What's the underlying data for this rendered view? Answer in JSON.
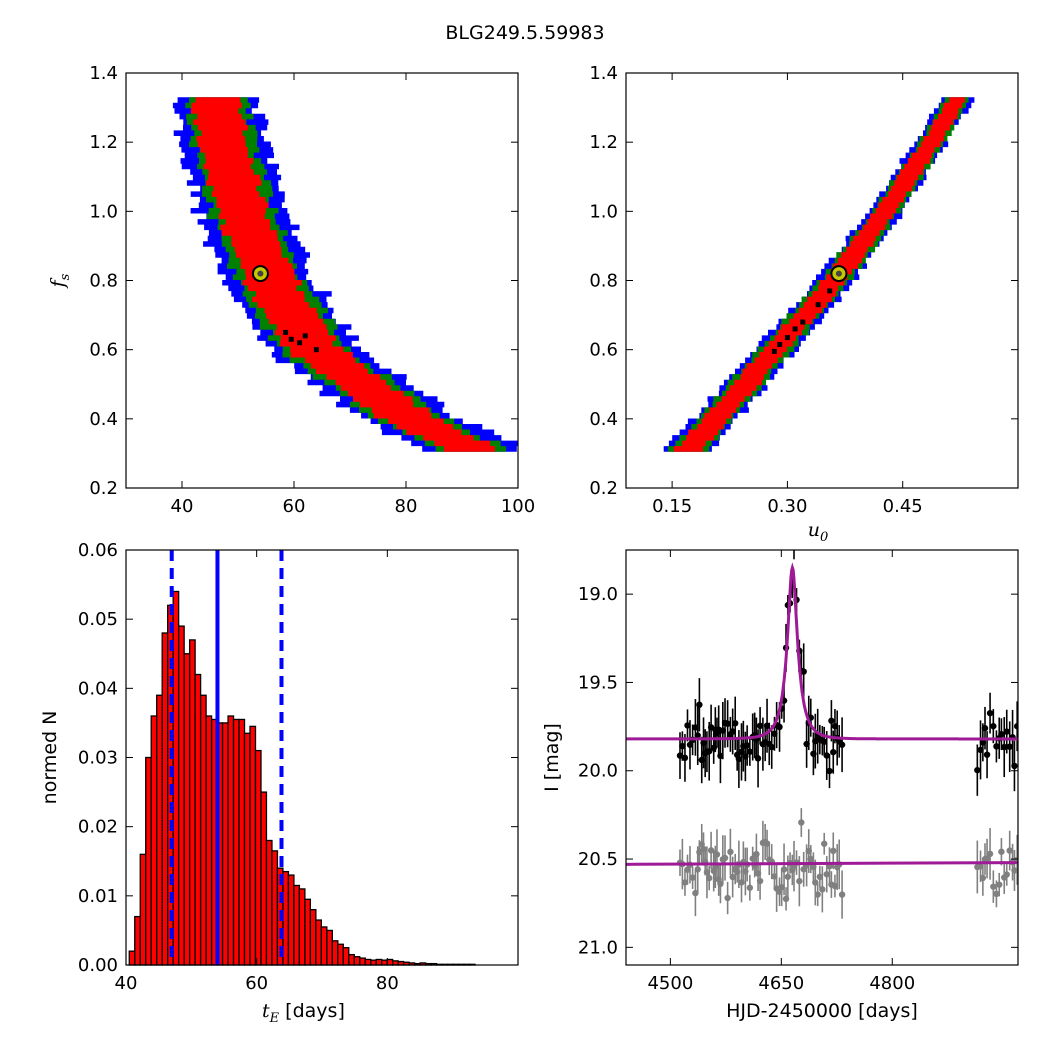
{
  "title": "BLG249.5.59983",
  "chart_data": [
    {
      "type": "heatmap",
      "panel": "top-left",
      "xlabel": "",
      "ylabel": "f_s",
      "ylabel_main": "f",
      "ylabel_sub": "s",
      "xlim": [
        30,
        100
      ],
      "ylim": [
        0.2,
        1.4
      ],
      "xticks": [
        40,
        60,
        80,
        100
      ],
      "yticks": [
        0.2,
        0.4,
        0.6,
        0.8,
        1.0,
        1.2,
        1.4
      ],
      "colors": {
        "outer": "#0000ff",
        "middle": "#008000",
        "inner": "#ff0000",
        "samples": "#000000"
      },
      "ridge_x_at_y": [
        [
          1.32,
          46.0
        ],
        [
          1.2,
          47.4
        ],
        [
          1.0,
          50.5
        ],
        [
          0.8,
          55.5
        ],
        [
          0.6,
          63.0
        ],
        [
          0.4,
          80.0
        ],
        [
          0.3,
          92.0
        ]
      ],
      "band_halfwidth": {
        "inner": [
          3.5,
          5.0
        ],
        "middle": [
          4.5,
          6.5
        ],
        "outer": [
          6.0,
          9.0
        ]
      },
      "y_range": [
        0.305,
        1.33
      ],
      "samples": [
        [
          58.5,
          0.65
        ],
        [
          59.5,
          0.63
        ],
        [
          61.0,
          0.62
        ],
        [
          62.0,
          0.64
        ],
        [
          64.0,
          0.6
        ]
      ],
      "best_fit": {
        "x": 54.0,
        "y": 0.82
      }
    },
    {
      "type": "heatmap",
      "panel": "top-right",
      "xlabel": "u_0",
      "xlabel_main": "u",
      "xlabel_sub": "0",
      "ylabel": "",
      "xlim": [
        0.09,
        0.6
      ],
      "ylim": [
        0.2,
        1.4
      ],
      "xticks": [
        0.15,
        0.3,
        0.45
      ],
      "xtick_labels": [
        "0.15",
        "0.30",
        "0.45"
      ],
      "yticks": [
        0.2,
        0.4,
        0.6,
        0.8,
        1.0,
        1.2,
        1.4
      ],
      "colors": {
        "outer": "#0000ff",
        "middle": "#008000",
        "inner": "#ff0000",
        "samples": "#000000"
      },
      "ridge_x_at_y": [
        [
          0.305,
          0.172
        ],
        [
          0.4,
          0.21
        ],
        [
          0.6,
          0.287
        ],
        [
          0.8,
          0.365
        ],
        [
          1.0,
          0.43
        ],
        [
          1.2,
          0.49
        ],
        [
          1.33,
          0.525
        ]
      ],
      "band_halfwidth": {
        "inner": [
          0.007,
          0.018
        ],
        "middle": [
          0.01,
          0.024
        ],
        "outer": [
          0.013,
          0.03
        ]
      },
      "y_range": [
        0.305,
        1.33
      ],
      "samples": [
        [
          0.283,
          0.595
        ],
        [
          0.29,
          0.615
        ],
        [
          0.3,
          0.635
        ],
        [
          0.31,
          0.66
        ],
        [
          0.32,
          0.68
        ],
        [
          0.34,
          0.73
        ],
        [
          0.355,
          0.77
        ]
      ],
      "best_fit": {
        "x": 0.367,
        "y": 0.82
      }
    },
    {
      "type": "bar",
      "panel": "bottom-left",
      "xlabel": "t_E  [days]",
      "xlabel_main": "t",
      "xlabel_sub": "E",
      "xlabel_rest": " [days]",
      "ylabel": "normed N",
      "xlim": [
        40,
        100
      ],
      "ylim": [
        0,
        0.06
      ],
      "xticks": [
        40,
        60,
        80
      ],
      "yticks": [
        0.0,
        0.01,
        0.02,
        0.03,
        0.04,
        0.05,
        0.06
      ],
      "ytick_labels": [
        "0.00",
        "0.01",
        "0.02",
        "0.03",
        "0.04",
        "0.05",
        "0.06"
      ],
      "bin_start": 40.5,
      "bin_width": 0.84,
      "values": [
        0.002,
        0.007,
        0.016,
        0.03,
        0.036,
        0.039,
        0.048,
        0.052,
        0.054,
        0.049,
        0.045,
        0.047,
        0.042,
        0.039,
        0.036,
        0.0355,
        0.035,
        0.035,
        0.036,
        0.0355,
        0.0355,
        0.0335,
        0.0345,
        0.031,
        0.025,
        0.018,
        0.0165,
        0.014,
        0.0135,
        0.013,
        0.0115,
        0.011,
        0.0095,
        0.008,
        0.0065,
        0.0055,
        0.005,
        0.0035,
        0.003,
        0.0025,
        0.0015,
        0.0012,
        0.001,
        0.0008,
        0.0007,
        0.0008,
        0.0007,
        0.0008,
        0.0006,
        0.0005,
        0.0004,
        0.0003,
        0.0002,
        0.0003,
        0.0002,
        0.0002,
        0.0001,
        0.0001,
        0.0001,
        0.0001,
        0.0001,
        0.0001,
        0.0001
      ],
      "median": 54.0,
      "interval": [
        47.0,
        63.8
      ],
      "colors": {
        "bars": "#ff0000",
        "lines": "#0000ff"
      }
    },
    {
      "type": "scatter",
      "panel": "bottom-right",
      "xlabel": "HJD-2450000 [days]",
      "ylabel": "I [mag]",
      "xlim": [
        4440,
        4970
      ],
      "ylim": [
        21.1,
        18.75
      ],
      "xticks": [
        4500,
        4650,
        4800
      ],
      "yticks": [
        19.0,
        19.5,
        20.0,
        20.5,
        21.0
      ],
      "ytick_labels": [
        "19.0",
        "19.5",
        "20.0",
        "20.5",
        "21.0"
      ],
      "model": {
        "baseline": 19.82,
        "peak_mag": 18.85,
        "t0": 4665,
        "tE": 54,
        "u0": 0.367,
        "blend_baseline": 20.53,
        "color": "#9e1a96"
      },
      "colors": {
        "observed": "#000000",
        "deblended": "#808080"
      }
    }
  ]
}
